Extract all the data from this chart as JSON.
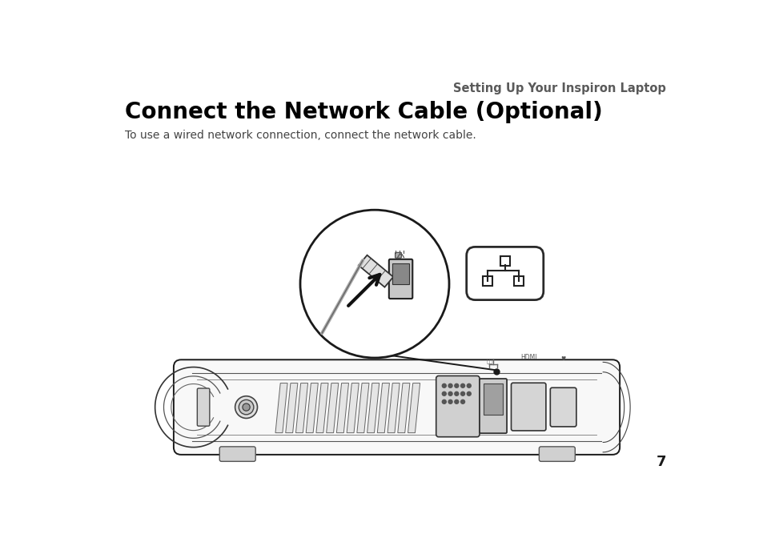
{
  "bg_color": "#ffffff",
  "header_text": "Setting Up Your Inspiron Laptop",
  "header_color": "#5a5a5a",
  "header_fontsize": 10.5,
  "title_text": "Connect the Network Cable (Optional)",
  "title_color": "#000000",
  "title_fontsize": 20,
  "subtitle_text": "To use a wired network connection, connect the network cable.",
  "subtitle_color": "#444444",
  "subtitle_fontsize": 10,
  "page_number": "7",
  "line_color": "#1a1a1a",
  "gray_light": "#e8e8e8",
  "gray_mid": "#bbbbbb",
  "gray_dark": "#888888"
}
